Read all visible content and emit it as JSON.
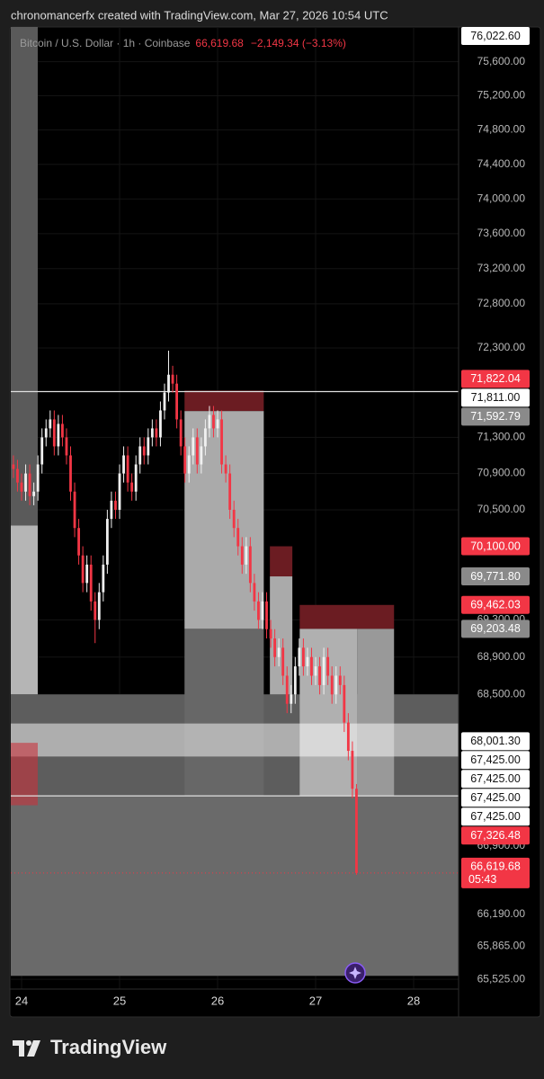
{
  "attribution": "chronomancerfx created with TradingView.com, Mar 27, 2026 10:54 UTC",
  "brand": "TradingView",
  "chart_data": {
    "type": "candlestick",
    "title": "Bitcoin / U.S. Dollar · 1h · Coinbase",
    "last_price_label": "66,619.68",
    "change_label": "−2,149.34 (−3.13%)",
    "log_scale": true,
    "grid": true,
    "up_color": "#f0f0f0",
    "down_color": "#f23645",
    "xlim": [
      -2.64,
      107
    ],
    "ylim": [
      65425,
      76010
    ],
    "xticks": [
      {
        "value": 0,
        "label": "24"
      },
      {
        "value": 24,
        "label": "25"
      },
      {
        "value": 48,
        "label": "26"
      },
      {
        "value": 72,
        "label": "27"
      },
      {
        "value": 96,
        "label": "28"
      }
    ],
    "yticks": [
      {
        "value": 75600,
        "label": "75,600.00"
      },
      {
        "value": 75200,
        "label": "75,200.00"
      },
      {
        "value": 74800,
        "label": "74,800.00"
      },
      {
        "value": 74400,
        "label": "74,400.00"
      },
      {
        "value": 74000,
        "label": "74,000.00"
      },
      {
        "value": 73600,
        "label": "73,600.00"
      },
      {
        "value": 73200,
        "label": "73,200.00"
      },
      {
        "value": 72800,
        "label": "72,800.00"
      },
      {
        "value": 72300,
        "label": "72,300.00"
      },
      {
        "value": 71300,
        "label": "71,300.00"
      },
      {
        "value": 70900,
        "label": "70,900.00"
      },
      {
        "value": 70500,
        "label": "70,500.00"
      },
      {
        "value": 69300,
        "label": "69,300.00"
      },
      {
        "value": 68900,
        "label": "68,900.00"
      },
      {
        "value": 68500,
        "label": "68,500.00"
      },
      {
        "value": 66900,
        "label": "66,900.00"
      },
      {
        "value": 66190,
        "label": "66,190.00"
      },
      {
        "value": 65865,
        "label": "65,865.00"
      },
      {
        "value": 65525,
        "label": "65,525.00"
      }
    ],
    "zones": [
      {
        "x": [
          -2.64,
          3.96
        ],
        "y": [
          76010,
          70327
        ],
        "color": "#5a5a5a"
      },
      {
        "x": [
          -2.64,
          3.96
        ],
        "y": [
          70327,
          68500
        ],
        "color": "#b5b5b5"
      },
      {
        "x": [
          -2.64,
          107
        ],
        "y": [
          68500,
          67425
        ],
        "color": "#5d5d5d"
      },
      {
        "x": [
          -2.64,
          107
        ],
        "y": [
          67425,
          65560
        ],
        "color": "#6a6a6a"
      },
      {
        "x": [
          39.9,
          59.3
        ],
        "y": [
          71822.04,
          71592.79
        ],
        "color": "#6b1c22"
      },
      {
        "x": [
          39.9,
          59.3
        ],
        "y": [
          71592.79,
          69203.48
        ],
        "color": "#aaaaaa"
      },
      {
        "x": [
          39.9,
          59.3
        ],
        "y": [
          69203.48,
          67425
        ],
        "color": "#676767"
      },
      {
        "x": [
          60.8,
          66.3
        ],
        "y": [
          70100,
          69771.8
        ],
        "color": "#6b1c22"
      },
      {
        "x": [
          60.8,
          66.3
        ],
        "y": [
          69771.8,
          68500
        ],
        "color": "#aaaaaa"
      },
      {
        "x": [
          68.1,
          91.2
        ],
        "y": [
          69462.03,
          69203.48
        ],
        "color": "#6b1c22"
      },
      {
        "x": [
          68.1,
          82.2
        ],
        "y": [
          69203.48,
          67425
        ],
        "color": "#b0b0b0"
      },
      {
        "x": [
          82.2,
          91.2
        ],
        "y": [
          69203.48,
          67425
        ],
        "color": "#999999"
      },
      {
        "x": [
          -2.64,
          107
        ],
        "y": [
          68190,
          67840
        ],
        "color": "rgba(255,255,255,0.5)"
      },
      {
        "x": [
          -2.64,
          3.96
        ],
        "y": [
          67985,
          67326.48
        ],
        "color": "rgba(200,50,60,0.6)"
      }
    ],
    "lines": [
      {
        "value": 71811,
        "color": "#e0e0e0"
      },
      {
        "value": 67425,
        "color": "#e0e0e0"
      },
      {
        "value": 66619.68,
        "color": "#f23645",
        "dash": true
      }
    ],
    "x": [
      -2,
      -1,
      0,
      1,
      2,
      3,
      4,
      5,
      6,
      7,
      8,
      9,
      10,
      11,
      12,
      13,
      14,
      15,
      16,
      17,
      18,
      19,
      20,
      21,
      22,
      23,
      24,
      25,
      26,
      27,
      28,
      29,
      30,
      31,
      32,
      33,
      34,
      35,
      36,
      37,
      38,
      39,
      40,
      41,
      42,
      43,
      44,
      45,
      46,
      47,
      48,
      49,
      50,
      51,
      52,
      53,
      54,
      55,
      56,
      57,
      58,
      59,
      60,
      61,
      62,
      63,
      64,
      65,
      66,
      67,
      68,
      69,
      70,
      71,
      72,
      73,
      74,
      75,
      76,
      77,
      78,
      79,
      80,
      81,
      82
    ],
    "candles": [
      [
        71000,
        71100,
        70850,
        70950
      ],
      [
        70950,
        71050,
        70700,
        70800
      ],
      [
        70800,
        70900,
        70600,
        70700
      ],
      [
        70700,
        71000,
        70600,
        70900
      ],
      [
        70900,
        71000,
        70550,
        70650
      ],
      [
        70650,
        70800,
        70550,
        70700
      ],
      [
        70700,
        71100,
        70600,
        71000
      ],
      [
        71000,
        71400,
        70900,
        71300
      ],
      [
        71300,
        71500,
        71200,
        71400
      ],
      [
        71400,
        71600,
        71300,
        71500
      ],
      [
        71500,
        71600,
        71100,
        71200
      ],
      [
        71200,
        71550,
        71100,
        71450
      ],
      [
        71450,
        71550,
        71200,
        71300
      ],
      [
        71300,
        71400,
        71000,
        71100
      ],
      [
        71100,
        71200,
        70600,
        70700
      ],
      [
        70700,
        70800,
        70200,
        70300
      ],
      [
        70300,
        70400,
        69900,
        70000
      ],
      [
        70000,
        70100,
        69600,
        69700
      ],
      [
        69700,
        70000,
        69600,
        69900
      ],
      [
        69900,
        70000,
        69400,
        69500
      ],
      [
        69500,
        69600,
        69050,
        69300
      ],
      [
        69300,
        69700,
        69200,
        69600
      ],
      [
        69600,
        70000,
        69500,
        69900
      ],
      [
        69900,
        70500,
        69800,
        70400
      ],
      [
        70400,
        70700,
        70300,
        70600
      ],
      [
        70600,
        70700,
        70400,
        70500
      ],
      [
        70500,
        71000,
        70400,
        70900
      ],
      [
        70900,
        71200,
        70800,
        71100
      ],
      [
        71100,
        71200,
        70700,
        70800
      ],
      [
        70800,
        70900,
        70600,
        70700
      ],
      [
        70700,
        71100,
        70600,
        71000
      ],
      [
        71000,
        71300,
        70900,
        71200
      ],
      [
        71200,
        71300,
        71000,
        71100
      ],
      [
        71100,
        71400,
        71000,
        71300
      ],
      [
        71300,
        71500,
        71200,
        71400
      ],
      [
        71400,
        71500,
        71200,
        71300
      ],
      [
        71300,
        71700,
        71200,
        71600
      ],
      [
        71600,
        71900,
        71500,
        71800
      ],
      [
        71800,
        72270,
        71700,
        72000
      ],
      [
        72000,
        72100,
        71800,
        71900
      ],
      [
        71900,
        72000,
        71400,
        71500
      ],
      [
        71500,
        71600,
        71100,
        71200
      ],
      [
        71200,
        71300,
        70800,
        70900
      ],
      [
        70900,
        71200,
        70800,
        71100
      ],
      [
        71100,
        71400,
        71000,
        71300
      ],
      [
        71300,
        71400,
        70900,
        71000
      ],
      [
        71000,
        71300,
        70900,
        71200
      ],
      [
        71200,
        71500,
        71100,
        71400
      ],
      [
        71400,
        71650,
        71300,
        71550
      ],
      [
        71550,
        71650,
        71300,
        71400
      ],
      [
        71400,
        71600,
        71300,
        71500
      ],
      [
        71500,
        71600,
        70900,
        71000
      ],
      [
        71000,
        71100,
        70800,
        70900
      ],
      [
        70900,
        71000,
        70400,
        70500
      ],
      [
        70500,
        70600,
        70200,
        70300
      ],
      [
        70300,
        70400,
        70000,
        70100
      ],
      [
        70100,
        70200,
        69800,
        69900
      ],
      [
        69900,
        70200,
        69800,
        70100
      ],
      [
        70100,
        70200,
        69600,
        69700
      ],
      [
        69700,
        69800,
        69400,
        69500
      ],
      [
        69500,
        69600,
        69200,
        69300
      ],
      [
        69300,
        69600,
        69200,
        69500
      ],
      [
        69500,
        69600,
        69100,
        69200
      ],
      [
        69200,
        69300,
        69000,
        69100
      ],
      [
        69100,
        69200,
        68800,
        68900
      ],
      [
        68900,
        69100,
        68800,
        69000
      ],
      [
        69000,
        69100,
        68600,
        68700
      ],
      [
        68700,
        68800,
        68300,
        68400
      ],
      [
        68400,
        68600,
        68300,
        68500
      ],
      [
        68500,
        68900,
        68400,
        68800
      ],
      [
        68800,
        69100,
        68700,
        69000
      ],
      [
        69000,
        69100,
        68700,
        68800
      ],
      [
        68800,
        69000,
        68700,
        68900
      ],
      [
        68900,
        69000,
        68600,
        68700
      ],
      [
        68700,
        68900,
        68600,
        68800
      ],
      [
        68800,
        68900,
        68500,
        68600
      ],
      [
        68600,
        69000,
        68500,
        68900
      ],
      [
        68900,
        69000,
        68600,
        68700
      ],
      [
        68700,
        68800,
        68400,
        68500
      ],
      [
        68500,
        68800,
        68400,
        68700
      ],
      [
        68700,
        68800,
        68500,
        68600
      ],
      [
        68600,
        68700,
        68100,
        68200
      ],
      [
        68200,
        68300,
        67800,
        67900
      ],
      [
        67900,
        68000,
        67400,
        67500
      ],
      [
        67500,
        67550,
        66600,
        66619.68
      ]
    ],
    "price_tags": [
      {
        "value": 76022.6,
        "label": "76,022.60",
        "bg": "#ffffff",
        "fg": "#131313"
      },
      {
        "value": 71822.04,
        "label": "71,822.04",
        "bg": "#f23645",
        "fg": "#ffffff"
      },
      {
        "value": 71811,
        "label": "71,811.00",
        "bg": "#ffffff",
        "fg": "#131313"
      },
      {
        "value": 71592.79,
        "label": "71,592.79",
        "bg": "#8a8a8a",
        "fg": "#ffffff"
      },
      {
        "value": 70100,
        "label": "70,100.00",
        "bg": "#f23645",
        "fg": "#ffffff"
      },
      {
        "value": 69771.8,
        "label": "69,771.80",
        "bg": "#8a8a8a",
        "fg": "#ffffff"
      },
      {
        "value": 69462.03,
        "label": "69,462.03",
        "bg": "#f23645",
        "fg": "#ffffff"
      },
      {
        "value": 69203.48,
        "label": "69,203.48",
        "bg": "#8a8a8a",
        "fg": "#ffffff"
      },
      {
        "value": 68001.3,
        "label": "68,001.30",
        "bg": "#ffffff",
        "fg": "#131313"
      },
      {
        "value": 67425,
        "label": "67,425.00",
        "bg": "#ffffff",
        "fg": "#131313"
      },
      {
        "value": 67425,
        "label": "67,425.00",
        "bg": "#ffffff",
        "fg": "#131313"
      },
      {
        "value": 67425,
        "label": "67,425.00",
        "bg": "#ffffff",
        "fg": "#131313"
      },
      {
        "value": 67425,
        "label": "67,425.00",
        "bg": "#ffffff",
        "fg": "#131313"
      },
      {
        "value": 67326.48,
        "label": "67,326.48",
        "bg": "#f23645",
        "fg": "#ffffff"
      },
      {
        "value": 66619.68,
        "label": "66,619.68",
        "sublabel": "05:43",
        "bg": "#f23645",
        "fg": "#ffffff"
      }
    ]
  }
}
